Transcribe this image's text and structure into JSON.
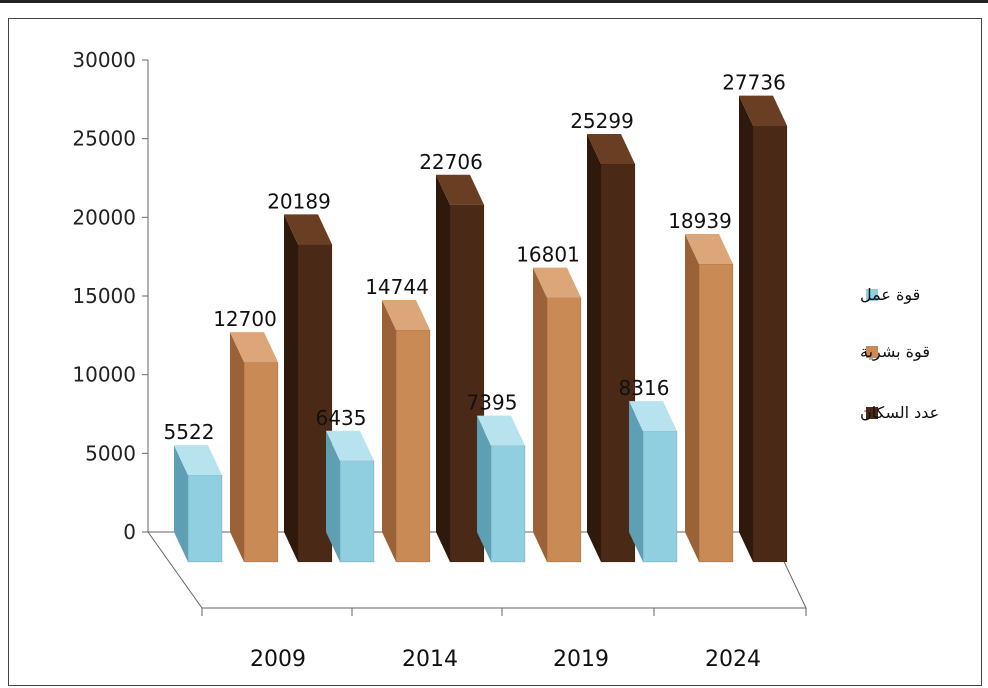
{
  "chart_data": {
    "type": "bar",
    "style": "3d-clustered-column",
    "categories": [
      "2009",
      "2014",
      "2019",
      "2024"
    ],
    "series": [
      {
        "name": "قوة عمل",
        "values": [
          5522,
          6435,
          7395,
          8316
        ],
        "color": "#8fcfe0",
        "side": "#5f9fb3",
        "top": "#b7e3ee"
      },
      {
        "name": "قوة بشرية",
        "values": [
          12700,
          14744,
          16801,
          18939
        ],
        "color": "#c98a55",
        "side": "#9a6236",
        "top": "#dca679"
      },
      {
        "name": "عدد السكان",
        "values": [
          20189,
          22706,
          25299,
          27736
        ],
        "color": "#4a2a17",
        "side": "#2e190c",
        "top": "#6a3e22"
      }
    ],
    "yticks": [
      "0",
      "5000",
      "10000",
      "15000",
      "20000",
      "25000",
      "30000"
    ],
    "ylim": [
      0,
      30000
    ],
    "grid": false,
    "legend": "right"
  }
}
